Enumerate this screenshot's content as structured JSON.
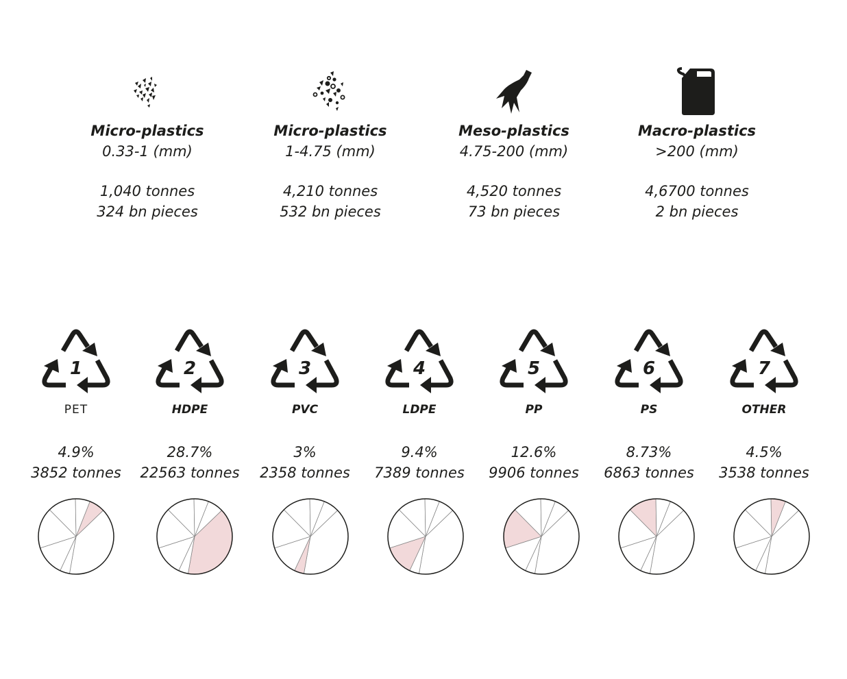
{
  "size_categories": [
    {
      "icon": "micro-fragments-small-icon",
      "title": "Micro-plastics",
      "range": "0.33-1 (mm)",
      "tonnes": "1,040 tonnes",
      "pieces": "324 bn pieces"
    },
    {
      "icon": "micro-fragments-large-icon",
      "title": "Micro-plastics",
      "range": "1-4.75 (mm)",
      "tonnes": "4,210 tonnes",
      "pieces": "532 bn pieces"
    },
    {
      "icon": "broken-bottle-icon",
      "title": "Meso-plastics",
      "range": "4.75-200 (mm)",
      "tonnes": "4,520 tonnes",
      "pieces": "73 bn pieces"
    },
    {
      "icon": "jerry-can-icon",
      "title": "Macro-plastics",
      "range": ">200 (mm)",
      "tonnes": "4,6700 tonnes",
      "pieces": "2 bn pieces"
    }
  ],
  "plastic_types": [
    {
      "number": "1",
      "label": "PET",
      "percent": "4.9%",
      "tonnes": "3852 tonnes"
    },
    {
      "number": "2",
      "label": "HDPE",
      "percent": "28.7%",
      "tonnes": "22563 tonnes"
    },
    {
      "number": "3",
      "label": "PVC",
      "percent": "3%",
      "tonnes": "2358 tonnes"
    },
    {
      "number": "4",
      "label": "LDPE",
      "percent": "9.4%",
      "tonnes": "7389 tonnes"
    },
    {
      "number": "5",
      "label": "PP",
      "percent": "12.6%",
      "tonnes": "9906 tonnes"
    },
    {
      "number": "6",
      "label": "PS",
      "percent": "8.73%",
      "tonnes": "6863 tonnes"
    },
    {
      "number": "7",
      "label": "OTHER",
      "percent": "4.5%",
      "tonnes": "3538 tonnes"
    }
  ],
  "chart_data": {
    "type": "pie",
    "categories": [
      "PET",
      "HDPE",
      "PVC",
      "LDPE",
      "PP",
      "PS",
      "OTHER"
    ],
    "values": [
      4.9,
      28.7,
      3,
      9.4,
      12.6,
      8.73,
      4.5
    ],
    "tonnes": [
      3852,
      22563,
      2358,
      7389,
      9906,
      6863,
      3538
    ],
    "highlight_color": "#f2d9da",
    "outline_color": "#1d1d1b",
    "divider_color": "#888888"
  },
  "colors": {
    "text": "#1d1d1b",
    "background": "#ffffff",
    "pie_highlight": "#f2d9da"
  }
}
